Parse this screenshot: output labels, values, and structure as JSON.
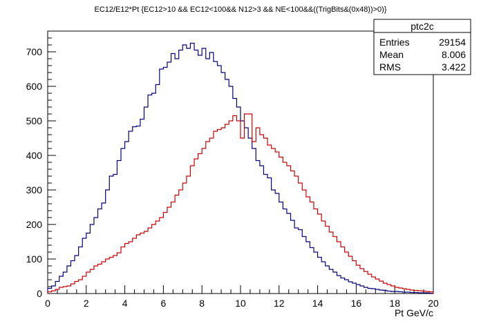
{
  "chart_data": {
    "type": "step-histogram",
    "title": "EC12/E12*Pt {EC12>10 && EC12<100&& N12>3 && NE<100&&((TrigBits&(0x48))>0)}",
    "xlabel": "Pt GeV/c",
    "ylabel": "",
    "xlim": [
      0,
      20
    ],
    "ylim": [
      0,
      760
    ],
    "x_ticks": [
      0,
      2,
      4,
      6,
      8,
      10,
      12,
      14,
      16,
      18,
      20
    ],
    "x_tick_labels": [
      "0",
      "2",
      "4",
      "6",
      "8",
      "10",
      "12",
      "14",
      "16",
      "18",
      "20"
    ],
    "y_ticks": [
      0,
      100,
      200,
      300,
      400,
      500,
      600,
      700
    ],
    "y_tick_labels": [
      "0",
      "100",
      "200",
      "300",
      "400",
      "500",
      "600",
      "700"
    ],
    "bin_width": 0.2,
    "series": [
      {
        "color": "#000080",
        "values": [
          15,
          22,
          35,
          50,
          62,
          80,
          95,
          110,
          135,
          160,
          175,
          200,
          220,
          245,
          262,
          300,
          340,
          345,
          385,
          420,
          440,
          470,
          483,
          485,
          505,
          540,
          575,
          580,
          605,
          650,
          655,
          670,
          695,
          680,
          705,
          720,
          710,
          725,
          705,
          690,
          710,
          680,
          698,
          672,
          660,
          640,
          620,
          600,
          565,
          540,
          500,
          480,
          450,
          420,
          385,
          370,
          345,
          335,
          300,
          290,
          265,
          245,
          232,
          212,
          190,
          185,
          165,
          150,
          133,
          120,
          105,
          92,
          80,
          70,
          62,
          52,
          45,
          40,
          34,
          30,
          26,
          22,
          18,
          15,
          14,
          12,
          10,
          9,
          7,
          6,
          6,
          5,
          4,
          4,
          3,
          3,
          2,
          2,
          2,
          1
        ]
      },
      {
        "color": "#cc0000",
        "values": [
          5,
          8,
          12,
          18,
          20,
          22,
          28,
          35,
          40,
          50,
          62,
          70,
          80,
          85,
          92,
          100,
          105,
          110,
          118,
          135,
          145,
          150,
          160,
          170,
          175,
          180,
          190,
          200,
          210,
          220,
          235,
          250,
          265,
          285,
          300,
          320,
          340,
          370,
          390,
          405,
          420,
          440,
          450,
          470,
          475,
          480,
          490,
          500,
          515,
          500,
          450,
          520,
          520,
          440,
          480,
          460,
          450,
          430,
          420,
          410,
          395,
          380,
          370,
          355,
          340,
          320,
          300,
          280,
          265,
          245,
          230,
          210,
          195,
          178,
          165,
          150,
          135,
          120,
          108,
          95,
          82,
          72,
          64,
          56,
          48,
          42,
          36,
          30,
          26,
          22,
          18,
          16,
          14,
          12,
          10,
          9,
          8,
          7,
          6,
          5
        ]
      }
    ],
    "stats_box": {
      "name": "ptc2c",
      "rows": [
        {
          "label": "Entries",
          "value": "29154"
        },
        {
          "label": "Mean",
          "value": "8.006"
        },
        {
          "label": "RMS",
          "value": "3.422"
        }
      ]
    }
  }
}
